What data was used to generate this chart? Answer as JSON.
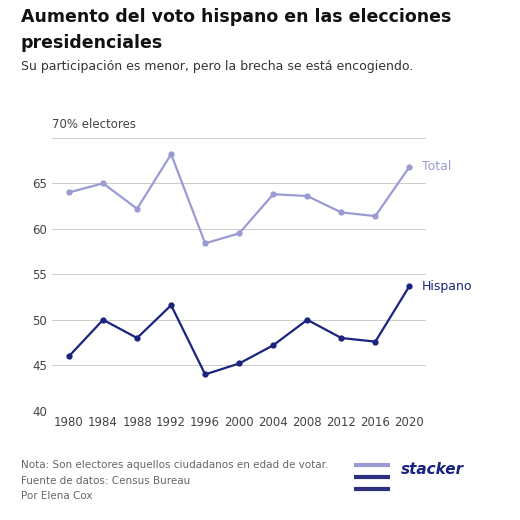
{
  "title_line1": "Aumento del voto hispano en las elecciones",
  "title_line2": "presidenciales",
  "subtitle": "Su participación es menor, pero la brecha se está encogiendo.",
  "ylabel": "70% electores",
  "years": [
    1980,
    1984,
    1988,
    1992,
    1996,
    2000,
    2004,
    2008,
    2012,
    2016,
    2020
  ],
  "total": [
    64.0,
    65.0,
    62.2,
    68.2,
    58.4,
    59.5,
    63.8,
    63.6,
    61.8,
    61.4,
    66.8
  ],
  "hispano": [
    46.0,
    50.0,
    48.0,
    51.6,
    44.0,
    45.2,
    47.2,
    50.0,
    48.0,
    47.6,
    53.7
  ],
  "total_color": "#9b9bd4",
  "hispano_color": "#1a237e",
  "ylim": [
    40,
    72
  ],
  "yticks": [
    40,
    45,
    50,
    55,
    60,
    65,
    70
  ],
  "xticks": [
    1980,
    1984,
    1988,
    1992,
    1996,
    2000,
    2004,
    2008,
    2012,
    2016,
    2020
  ],
  "note1": "Nota: Son electores aquellos ciudadanos en edad de votar.",
  "note2": "Fuente de datos: Census Bureau",
  "note3": "Por Elena Cox",
  "background_color": "#ffffff",
  "grid_color": "#cccccc",
  "label_total": "Total",
  "label_hispano": "Hispano",
  "stacker_icon_color1": "#9b9bd4",
  "stacker_icon_color2": "#2d3080",
  "stacker_text_color": "#1a237e"
}
